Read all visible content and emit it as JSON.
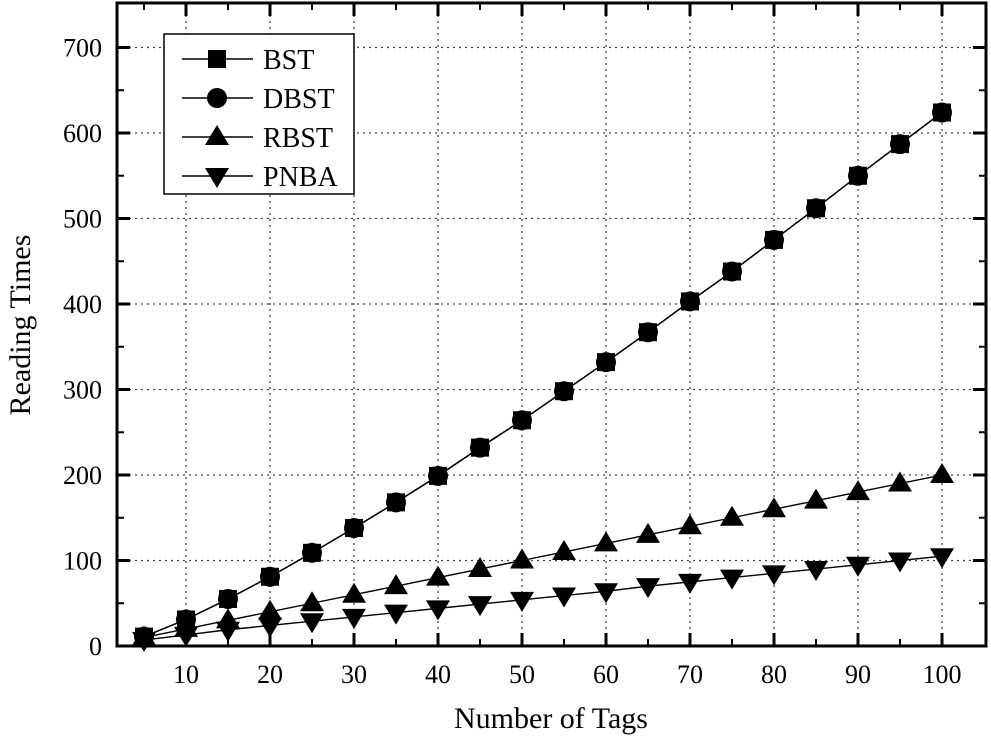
{
  "chart_data": {
    "type": "line",
    "title": "",
    "xlabel": "Number of Tags",
    "ylabel": "Reading Times",
    "xlim": [
      2,
      105
    ],
    "ylim": [
      0,
      750
    ],
    "x_ticks": [
      10,
      20,
      30,
      40,
      50,
      60,
      70,
      80,
      90,
      100
    ],
    "y_ticks": [
      0,
      100,
      200,
      300,
      400,
      500,
      600,
      700
    ],
    "grid": true,
    "legend_position": "upper-left",
    "x": [
      5,
      10,
      15,
      20,
      25,
      30,
      35,
      40,
      45,
      50,
      55,
      60,
      65,
      70,
      75,
      80,
      85,
      90,
      95,
      100
    ],
    "series": [
      {
        "name": "BST",
        "marker": "square",
        "values": [
          11,
          31,
          55,
          81,
          109,
          138,
          168,
          199,
          232,
          264,
          298,
          332,
          367,
          403,
          438,
          475,
          512,
          550,
          587,
          624
        ]
      },
      {
        "name": "DBST",
        "marker": "circle",
        "values": [
          11,
          31,
          55,
          81,
          109,
          138,
          168,
          199,
          232,
          264,
          298,
          332,
          367,
          403,
          438,
          475,
          512,
          550,
          587,
          624
        ]
      },
      {
        "name": "RBST",
        "marker": "triangle-up",
        "values": [
          10,
          20,
          30,
          40,
          50,
          60,
          70,
          80,
          90,
          100,
          110,
          120,
          130,
          140,
          150,
          160,
          170,
          180,
          190,
          200
        ]
      },
      {
        "name": "PNBA",
        "marker": "triangle-down",
        "values": [
          7,
          13,
          19,
          24,
          29,
          34,
          39,
          44,
          49,
          54,
          59,
          64,
          70,
          75,
          80,
          85,
          90,
          95,
          100,
          105
        ]
      }
    ]
  },
  "colors": {
    "line": "#000000",
    "marker": "#000000",
    "grid": "#444444",
    "background": "#ffffff"
  }
}
